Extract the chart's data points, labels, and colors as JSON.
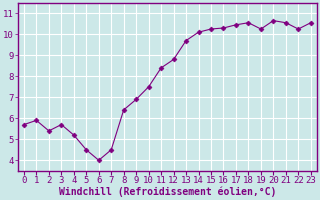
{
  "x": [
    0,
    1,
    2,
    3,
    4,
    5,
    6,
    7,
    8,
    9,
    10,
    11,
    12,
    13,
    14,
    15,
    16,
    17,
    18,
    19,
    20,
    21,
    22,
    23
  ],
  "y": [
    5.7,
    5.9,
    5.4,
    5.7,
    5.2,
    4.5,
    4.0,
    4.5,
    6.4,
    6.9,
    7.5,
    8.4,
    8.8,
    9.7,
    10.1,
    10.25,
    10.3,
    10.45,
    10.55,
    10.25,
    10.65,
    10.55,
    10.25,
    10.55
  ],
  "line_color": "#800080",
  "marker": "D",
  "marker_size": 2.5,
  "bg_color": "#cce8e8",
  "plot_bg_color": "#cce8e8",
  "grid_color": "#b0d8d8",
  "tick_color": "#800080",
  "label_color": "#800080",
  "spine_color": "#800080",
  "xlabel": "Windchill (Refroidissement éolien,°C)",
  "xlim": [
    -0.5,
    23.5
  ],
  "ylim": [
    3.5,
    11.5
  ],
  "yticks": [
    4,
    5,
    6,
    7,
    8,
    9,
    10,
    11
  ],
  "xticks": [
    0,
    1,
    2,
    3,
    4,
    5,
    6,
    7,
    8,
    9,
    10,
    11,
    12,
    13,
    14,
    15,
    16,
    17,
    18,
    19,
    20,
    21,
    22,
    23
  ],
  "font_size": 6.5,
  "xlabel_fontsize": 7
}
